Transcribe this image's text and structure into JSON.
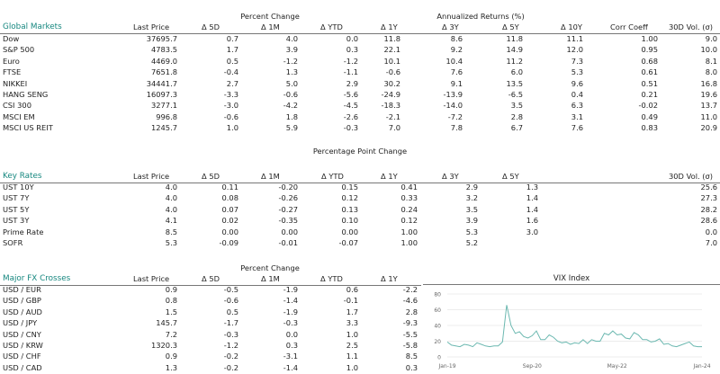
{
  "global_markets": {
    "title": "Global Markets",
    "group_headers": {
      "percent_change": "Percent Change",
      "annualized_returns": "Annualized Returns (%)"
    },
    "columns": [
      "Last Price",
      "Δ 5D",
      "Δ 1M",
      "Δ YTD",
      "Δ 1Y",
      "Δ 3Y",
      "Δ 5Y",
      "Δ 10Y",
      "Corr Coeff",
      "30D Vol. (σ)"
    ],
    "rows": [
      {
        "name": "Dow",
        "values": [
          "37695.7",
          "0.7",
          "4.0",
          "0.0",
          "11.8",
          "8.6",
          "11.8",
          "11.1",
          "1.00",
          "9.0"
        ]
      },
      {
        "name": "S&P 500",
        "values": [
          "4783.5",
          "1.7",
          "3.9",
          "0.3",
          "22.1",
          "9.2",
          "14.9",
          "12.0",
          "0.95",
          "10.0"
        ]
      },
      {
        "name": "Euro",
        "values": [
          "4469.0",
          "0.5",
          "-1.2",
          "-1.2",
          "10.1",
          "10.4",
          "11.2",
          "7.3",
          "0.68",
          "8.1"
        ]
      },
      {
        "name": "FTSE",
        "values": [
          "7651.8",
          "-0.4",
          "1.3",
          "-1.1",
          "-0.6",
          "7.6",
          "6.0",
          "5.3",
          "0.61",
          "8.0"
        ]
      },
      {
        "name": "NIKKEI",
        "values": [
          "34441.7",
          "2.7",
          "5.0",
          "2.9",
          "30.2",
          "9.1",
          "13.5",
          "9.6",
          "0.51",
          "16.8"
        ]
      },
      {
        "name": "HANG SENG",
        "values": [
          "16097.3",
          "-3.3",
          "-0.6",
          "-5.6",
          "-24.9",
          "-13.9",
          "-6.5",
          "0.4",
          "0.21",
          "19.6"
        ]
      },
      {
        "name": "CSI 300",
        "values": [
          "3277.1",
          "-3.0",
          "-4.2",
          "-4.5",
          "-18.3",
          "-14.0",
          "3.5",
          "6.3",
          "-0.02",
          "13.7"
        ]
      },
      {
        "name": "MSCI EM",
        "values": [
          "996.8",
          "-0.6",
          "1.8",
          "-2.6",
          "-2.1",
          "-7.2",
          "2.8",
          "3.1",
          "0.49",
          "11.0"
        ]
      },
      {
        "name": "MSCI US REIT",
        "values": [
          "1245.7",
          "1.0",
          "5.9",
          "-0.3",
          "7.0",
          "7.8",
          "6.7",
          "7.6",
          "0.83",
          "20.9"
        ]
      }
    ]
  },
  "key_rates": {
    "title": "Key Rates",
    "group_header": "Percentage Point Change",
    "columns": [
      "Last Price",
      "Δ 5D",
      "Δ 1M",
      "Δ YTD",
      "Δ 1Y",
      "Δ 3Y",
      "Δ 5Y",
      "30D Vol. (σ)"
    ],
    "rows": [
      {
        "name": "UST 10Y",
        "values": [
          "4.0",
          "0.11",
          "-0.20",
          "0.15",
          "0.41",
          "2.9",
          "1.3",
          "25.6"
        ]
      },
      {
        "name": "UST 7Y",
        "values": [
          "4.0",
          "0.08",
          "-0.26",
          "0.12",
          "0.33",
          "3.2",
          "1.4",
          "27.3"
        ]
      },
      {
        "name": "UST 5Y",
        "values": [
          "4.0",
          "0.07",
          "-0.27",
          "0.13",
          "0.24",
          "3.5",
          "1.4",
          "28.2"
        ]
      },
      {
        "name": "UST 3Y",
        "values": [
          "4.1",
          "0.02",
          "-0.35",
          "0.10",
          "0.12",
          "3.9",
          "1.6",
          "28.6"
        ]
      },
      {
        "name": "Prime Rate",
        "values": [
          "8.5",
          "0.00",
          "0.00",
          "0.00",
          "1.00",
          "5.3",
          "3.0",
          "0.0"
        ]
      },
      {
        "name": "SOFR",
        "values": [
          "5.3",
          "-0.09",
          "-0.01",
          "-0.07",
          "1.00",
          "5.2",
          "",
          "7.0"
        ]
      }
    ]
  },
  "fx_crosses": {
    "title": "Major FX Crosses",
    "group_header": "Percent Change",
    "columns": [
      "Last Price",
      "Δ 5D",
      "Δ 1M",
      "Δ YTD",
      "Δ 1Y"
    ],
    "rows": [
      {
        "name": "USD / EUR",
        "values": [
          "0.9",
          "-0.5",
          "-1.9",
          "0.6",
          "-2.2"
        ]
      },
      {
        "name": "USD / GBP",
        "values": [
          "0.8",
          "-0.6",
          "-1.4",
          "-0.1",
          "-4.6"
        ]
      },
      {
        "name": "USD / AUD",
        "values": [
          "1.5",
          "0.5",
          "-1.9",
          "1.7",
          "2.8"
        ]
      },
      {
        "name": "USD / JPY",
        "values": [
          "145.7",
          "-1.7",
          "-0.3",
          "3.3",
          "-9.3"
        ]
      },
      {
        "name": "USD / CNY",
        "values": [
          "7.2",
          "-0.3",
          "0.0",
          "1.0",
          "-5.5"
        ]
      },
      {
        "name": "USD / KRW",
        "values": [
          "1320.3",
          "-1.2",
          "0.3",
          "2.5",
          "-5.8"
        ]
      },
      {
        "name": "USD / CHF",
        "values": [
          "0.9",
          "-0.2",
          "-3.1",
          "1.1",
          "8.5"
        ]
      },
      {
        "name": "USD / CAD",
        "values": [
          "1.3",
          "-0.2",
          "-1.4",
          "1.0",
          "0.3"
        ]
      }
    ]
  },
  "colors": {
    "accent": "#16877f",
    "vix_line": "#6bb8b0",
    "grid": "#e6e6e6"
  },
  "chart_data": {
    "type": "line",
    "title": "VIX Index",
    "ylim": [
      0,
      80
    ],
    "yticks": [
      0,
      20,
      40,
      60,
      80
    ],
    "xticks": [
      "Jan-19",
      "Sep-20",
      "May-22",
      "Jan-24"
    ],
    "grid": true,
    "x_start": "Jan-19",
    "x_end": "Jan-24",
    "values": [
      19,
      15,
      14,
      13,
      16,
      15,
      13,
      18,
      16,
      14,
      13,
      14,
      14,
      19,
      66,
      40,
      30,
      32,
      26,
      24,
      27,
      33,
      22,
      22,
      28,
      25,
      20,
      18,
      19,
      16,
      18,
      17,
      22,
      17,
      22,
      20,
      20,
      30,
      28,
      33,
      28,
      29,
      24,
      23,
      31,
      28,
      22,
      22,
      19,
      20,
      23,
      16,
      17,
      14,
      13,
      15,
      17,
      19,
      14,
      13,
      13
    ]
  }
}
